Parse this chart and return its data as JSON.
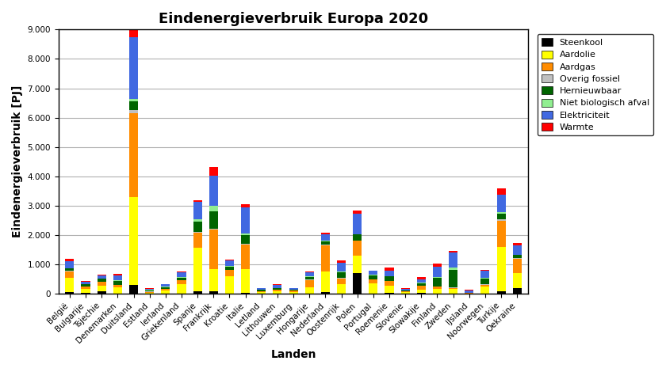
{
  "title": "Eindenergieverbruik Europa 2020",
  "xlabel": "Landen",
  "ylabel": "Eindenergieverbruik [PJ]",
  "ylim": [
    0,
    9000
  ],
  "yticks": [
    0,
    1000,
    2000,
    3000,
    4000,
    5000,
    6000,
    7000,
    8000,
    9000
  ],
  "countries": [
    "België",
    "Bulgarije",
    "Tsjechie",
    "Denemarken",
    "Duitsland",
    "Estland",
    "Ierland",
    "Griekenland",
    "Spanje",
    "Frankrijk",
    "Kroatie",
    "Italie",
    "Letland",
    "Lithouwen",
    "Luxemburg",
    "Hongarije",
    "Nederland",
    "Oostenrijk",
    "Polen",
    "Portugal",
    "Roemenie",
    "Slovenie",
    "Slowakije",
    "Finland",
    "Zweden",
    "IJsland",
    "Noorwegen",
    "Turkije",
    "Oekraine"
  ],
  "series": {
    "Steenkool": [
      50,
      40,
      80,
      20,
      300,
      10,
      10,
      20,
      80,
      80,
      10,
      30,
      5,
      10,
      5,
      20,
      60,
      20,
      700,
      10,
      30,
      10,
      30,
      10,
      10,
      5,
      10,
      100,
      200
    ],
    "Aardolie": [
      500,
      120,
      200,
      200,
      3000,
      30,
      100,
      300,
      1500,
      750,
      600,
      800,
      50,
      80,
      60,
      200,
      700,
      300,
      600,
      350,
      250,
      40,
      100,
      150,
      150,
      10,
      250,
      1500,
      500
    ],
    "Aardgas": [
      220,
      80,
      130,
      80,
      2850,
      30,
      60,
      150,
      500,
      1350,
      200,
      850,
      20,
      50,
      40,
      250,
      900,
      200,
      500,
      120,
      150,
      30,
      150,
      80,
      40,
      10,
      50,
      900,
      500
    ],
    "Overig fossiel": [
      10,
      5,
      10,
      10,
      100,
      5,
      5,
      5,
      20,
      30,
      10,
      20,
      5,
      5,
      5,
      10,
      30,
      15,
      20,
      10,
      10,
      5,
      10,
      5,
      10,
      5,
      10,
      30,
      20
    ],
    "Hernieuwbaar": [
      80,
      80,
      100,
      120,
      300,
      50,
      50,
      80,
      350,
      600,
      100,
      300,
      50,
      50,
      20,
      100,
      100,
      200,
      200,
      150,
      150,
      30,
      80,
      300,
      600,
      10,
      200,
      200,
      100
    ],
    "Niet biologisch afval": [
      20,
      10,
      10,
      40,
      80,
      5,
      20,
      10,
      80,
      200,
      20,
      50,
      5,
      10,
      5,
      10,
      30,
      20,
      20,
      10,
      10,
      5,
      10,
      30,
      100,
      5,
      20,
      50,
      20
    ],
    "Elektriciteit": [
      220,
      80,
      100,
      150,
      2100,
      50,
      80,
      180,
      600,
      1000,
      200,
      900,
      50,
      100,
      50,
      150,
      200,
      300,
      700,
      130,
      200,
      60,
      120,
      350,
      500,
      80,
      250,
      600,
      300
    ],
    "Warmte": [
      80,
      20,
      30,
      50,
      450,
      20,
      10,
      30,
      50,
      300,
      20,
      100,
      20,
      20,
      10,
      30,
      50,
      80,
      100,
      20,
      100,
      10,
      70,
      100,
      50,
      10,
      20,
      200,
      100
    ]
  },
  "colors": {
    "Steenkool": "#000000",
    "Aardolie": "#ffff00",
    "Aardgas": "#ff8c00",
    "Overig fossiel": "#c0c0c0",
    "Hernieuwbaar": "#006400",
    "Niet biologisch afval": "#90ee90",
    "Elektriciteit": "#4169e1",
    "Warmte": "#ff0000"
  },
  "legend_order": [
    "Steenkool",
    "Aardolie",
    "Aardgas",
    "Overig fossiel",
    "Hernieuwbaar",
    "Niet biologisch afval",
    "Elektriciteit",
    "Warmte"
  ],
  "background_color": "#ffffff",
  "grid_color": "#b0b0b0",
  "title_fontsize": 13,
  "axis_label_fontsize": 10,
  "tick_fontsize": 7.5,
  "bar_width": 0.55
}
